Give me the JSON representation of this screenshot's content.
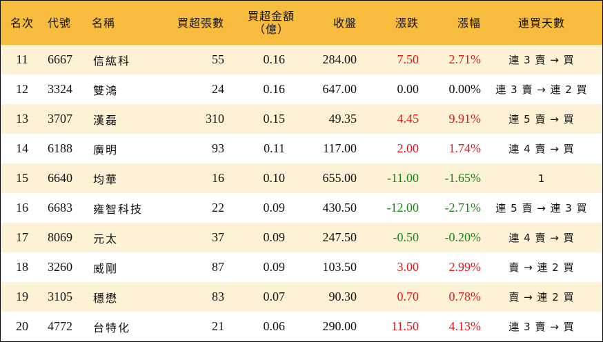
{
  "columns": [
    "名次",
    "代號",
    "名稱",
    "買超張數",
    "買超金額",
    "（億）",
    "收盤",
    "漲跌",
    "漲幅",
    "連買天數"
  ],
  "rows": [
    {
      "rank": "11",
      "code": "6667",
      "name": "信紘科",
      "lots": "55",
      "amount": "0.16",
      "close": "284.00",
      "change": "7.50",
      "pct": "2.71%",
      "days": "連 3 賣 → 買",
      "dir": "up"
    },
    {
      "rank": "12",
      "code": "3324",
      "name": "雙鴻",
      "lots": "24",
      "amount": "0.16",
      "close": "647.00",
      "change": "0.00",
      "pct": "0.00%",
      "days": "連 3 賣 → 連 2 買",
      "dir": "flat"
    },
    {
      "rank": "13",
      "code": "3707",
      "name": "漢磊",
      "lots": "310",
      "amount": "0.15",
      "close": "49.35",
      "change": "4.45",
      "pct": "9.91%",
      "days": "連 5 賣 → 買",
      "dir": "up"
    },
    {
      "rank": "14",
      "code": "6188",
      "name": "廣明",
      "lots": "93",
      "amount": "0.11",
      "close": "117.00",
      "change": "2.00",
      "pct": "1.74%",
      "days": "連 4 賣 → 買",
      "dir": "up"
    },
    {
      "rank": "15",
      "code": "6640",
      "name": "均華",
      "lots": "16",
      "amount": "0.10",
      "close": "655.00",
      "change": "-11.00",
      "pct": "-1.65%",
      "days": "1",
      "dir": "down"
    },
    {
      "rank": "16",
      "code": "6683",
      "name": "雍智科技",
      "lots": "22",
      "amount": "0.09",
      "close": "430.50",
      "change": "-12.00",
      "pct": "-2.71%",
      "days": "連 5 賣 → 連 3 買",
      "dir": "down"
    },
    {
      "rank": "17",
      "code": "8069",
      "name": "元太",
      "lots": "37",
      "amount": "0.09",
      "close": "247.50",
      "change": "-0.50",
      "pct": "-0.20%",
      "days": "連 4 賣 → 買",
      "dir": "down"
    },
    {
      "rank": "18",
      "code": "3260",
      "name": "威剛",
      "lots": "87",
      "amount": "0.09",
      "close": "103.50",
      "change": "3.00",
      "pct": "2.99%",
      "days": "賣 → 連 2 買",
      "dir": "up"
    },
    {
      "rank": "19",
      "code": "3105",
      "name": "穩懋",
      "lots": "83",
      "amount": "0.07",
      "close": "90.30",
      "change": "0.70",
      "pct": "0.78%",
      "days": "賣 → 連 2 買",
      "dir": "up"
    },
    {
      "rank": "20",
      "code": "4772",
      "name": "台特化",
      "lots": "21",
      "amount": "0.06",
      "close": "290.00",
      "change": "11.50",
      "pct": "4.13%",
      "days": "連 3 賣 → 買",
      "dir": "up"
    }
  ],
  "colors": {
    "header_bg": "#f7bc3e",
    "row_alt_bg": "#fdf1d6",
    "up": "#e8141c",
    "down": "#128a12"
  }
}
